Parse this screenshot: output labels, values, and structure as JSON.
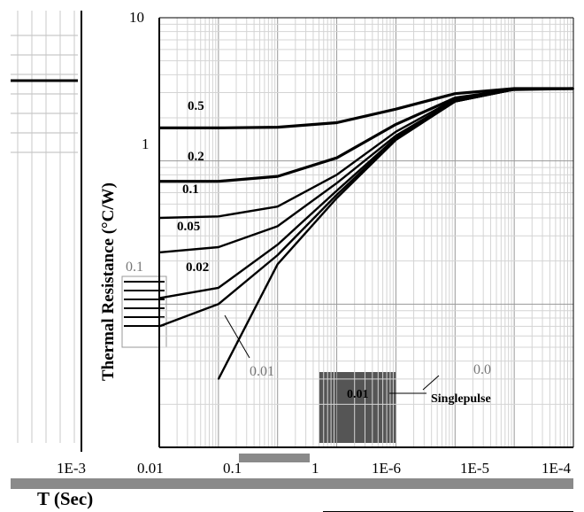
{
  "chart_data": {
    "type": "line",
    "xscale": "log",
    "yscale": "log",
    "xlabel": "T (Sec)",
    "ylabel": "Thermal Resistance (°C/W)",
    "x_tick_labels": [
      "1E-3",
      "0.01",
      "0.1",
      "1",
      "1E-6",
      "1E-5",
      "1E-4"
    ],
    "y_tick_labels": [
      "10",
      "1"
    ],
    "grid": true,
    "series": [
      {
        "name": "0.5",
        "x": [
          1e-06,
          1e-05,
          0.0001,
          0.001,
          0.01,
          0.1,
          1,
          10
        ],
        "y": [
          1.7,
          1.7,
          1.72,
          1.85,
          2.3,
          2.95,
          3.2,
          3.2
        ]
      },
      {
        "name": "0.2",
        "x": [
          1e-06,
          1e-05,
          0.0001,
          0.001,
          0.01,
          0.1,
          1,
          10
        ],
        "y": [
          0.72,
          0.72,
          0.78,
          1.05,
          1.8,
          2.75,
          3.15,
          3.2
        ]
      },
      {
        "name": "0.1",
        "x": [
          1e-06,
          1e-05,
          0.0001,
          0.001,
          0.01,
          0.1,
          1,
          10
        ],
        "y": [
          0.4,
          0.41,
          0.48,
          0.8,
          1.6,
          2.7,
          3.15,
          3.2
        ]
      },
      {
        "name": "0.05",
        "x": [
          1e-06,
          1e-05,
          0.0001,
          0.001,
          0.01,
          0.1,
          1,
          10
        ],
        "y": [
          0.23,
          0.25,
          0.35,
          0.7,
          1.5,
          2.65,
          3.15,
          3.2
        ]
      },
      {
        "name": "0.02",
        "x": [
          1e-06,
          1e-05,
          0.0001,
          0.001,
          0.01,
          0.1,
          1,
          10
        ],
        "y": [
          0.11,
          0.13,
          0.26,
          0.62,
          1.45,
          2.6,
          3.15,
          3.2
        ]
      },
      {
        "name": "0.01",
        "x": [
          1e-06,
          1e-05,
          0.0001,
          0.001,
          0.01,
          0.1,
          1,
          10
        ],
        "y": [
          0.07,
          0.1,
          0.22,
          0.58,
          1.42,
          2.6,
          3.15,
          3.2
        ]
      },
      {
        "name": "Singlepulse",
        "x": [
          1e-05,
          0.0001,
          0.001,
          0.01,
          0.1,
          1,
          10
        ],
        "y": [
          0.03,
          0.19,
          0.55,
          1.4,
          2.6,
          3.15,
          3.2
        ]
      }
    ],
    "curve_labels": [
      "0.5",
      "0.2",
      "0.1",
      "0.05",
      "0.02",
      "0.01",
      "Singlepulse"
    ],
    "ghost_labels": [
      "0.1",
      "0.0",
      "0.01"
    ]
  }
}
